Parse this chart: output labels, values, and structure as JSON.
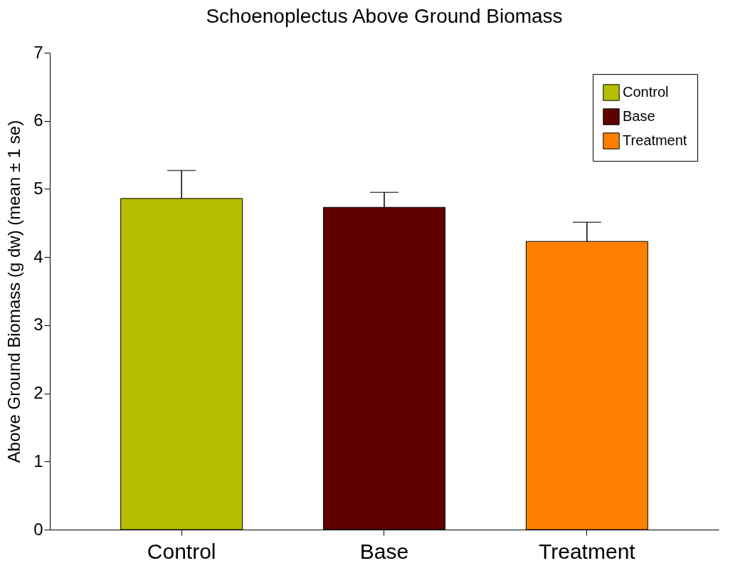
{
  "chart_data": {
    "type": "bar",
    "title": "Schoenoplectus Above Ground Biomass",
    "ylabel": "Above Ground Biomass (g dw) (mean ± 1 se)",
    "categories": [
      "Control",
      "Base",
      "Treatment"
    ],
    "series": [
      {
        "name": "Control",
        "color": "#b5bf00",
        "values": [
          4.86,
          null,
          null
        ],
        "errors": [
          [
            4.86,
            5.27
          ],
          null,
          null
        ]
      },
      {
        "name": "Base",
        "color": "#600000",
        "values": [
          null,
          4.73,
          null
        ],
        "errors": [
          null,
          [
            4.73,
            4.95
          ],
          null
        ]
      },
      {
        "name": "Treatment",
        "color": "#ff8000",
        "values": [
          null,
          null,
          4.23
        ],
        "errors": [
          null,
          null,
          [
            4.23,
            4.51
          ]
        ]
      }
    ],
    "ylim": [
      0,
      7
    ],
    "yticks": [
      0,
      1,
      2,
      3,
      4,
      5,
      6,
      7
    ],
    "grid": false,
    "legend": "top right"
  }
}
